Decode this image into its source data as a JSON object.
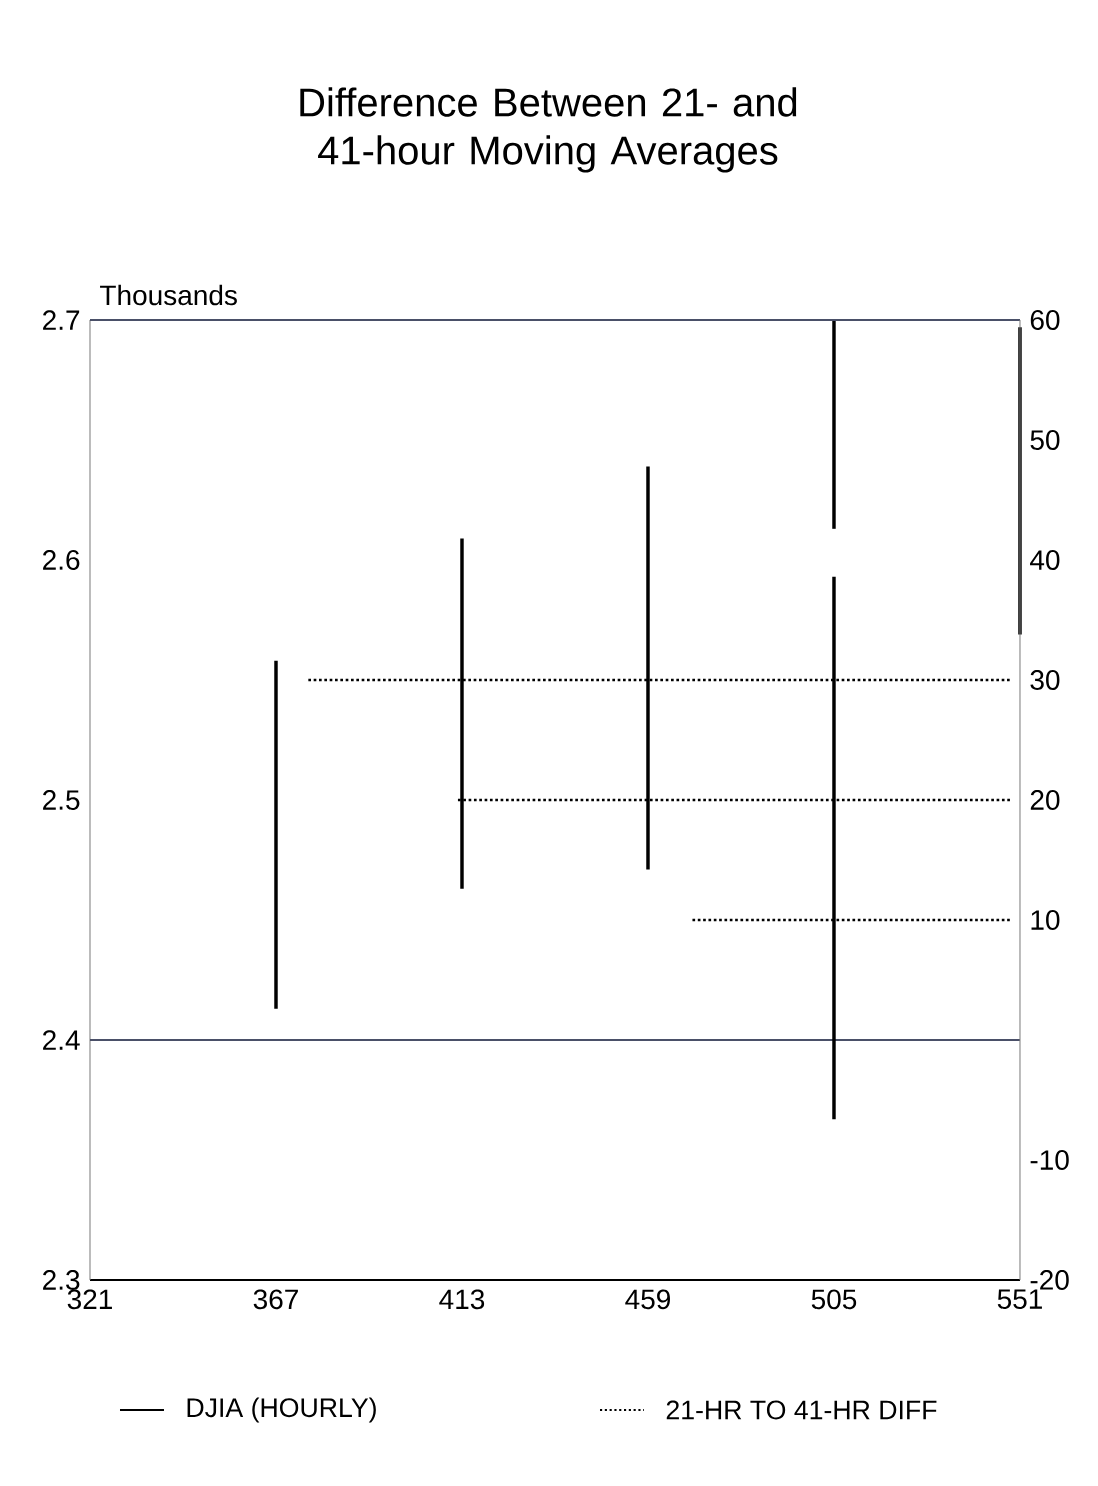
{
  "chart_data": {
    "type": "bar",
    "title": "Difference Between 21- and 41-hour Moving Averages",
    "ylabel": "Thousands",
    "xlim": [
      321,
      551
    ],
    "xticks": [
      321,
      367,
      413,
      459,
      505,
      551
    ],
    "ylim": [
      2.3,
      2.7
    ],
    "yticks": [
      2.3,
      2.4,
      2.5,
      2.6,
      2.7
    ],
    "y2lim": [
      -20,
      60
    ],
    "y2ticks": [
      -20,
      -10,
      10,
      20,
      30,
      40,
      50,
      60
    ],
    "series": [
      {
        "name": "DJIA (HOURLY)",
        "color": "#000000",
        "x": [
          367,
          413,
          459,
          505,
          551
        ],
        "base": [
          2.413,
          2.463,
          2.471,
          2.367,
          2.569
        ],
        "values": [
          0.145,
          0.146,
          0.168,
          0.226,
          0.128
        ]
      },
      {
        "color": "#000000",
        "x": [
          505
        ],
        "base": [
          2.613
        ],
        "values": [
          0.087
        ]
      },
      {
        "name": "21-HR TO 41-HR DIFF",
        "type": "line",
        "axis": "y2",
        "line_style": "dotted",
        "color": "#000000",
        "x": [
          375,
          549
        ],
        "values": [
          30,
          30
        ]
      },
      {
        "type": "line",
        "axis": "y2",
        "line_style": "dotted",
        "color": "#000000",
        "x": [
          412,
          549
        ],
        "values": [
          20,
          20
        ]
      },
      {
        "type": "line",
        "axis": "y2",
        "line_style": "dotted",
        "color": "#000000",
        "x": [
          470,
          549
        ],
        "values": [
          10,
          10
        ]
      }
    ],
    "ref_lines": [
      {
        "axis": "y",
        "value": 2.4,
        "color": "#4a5068"
      }
    ],
    "legend": "bottom"
  }
}
